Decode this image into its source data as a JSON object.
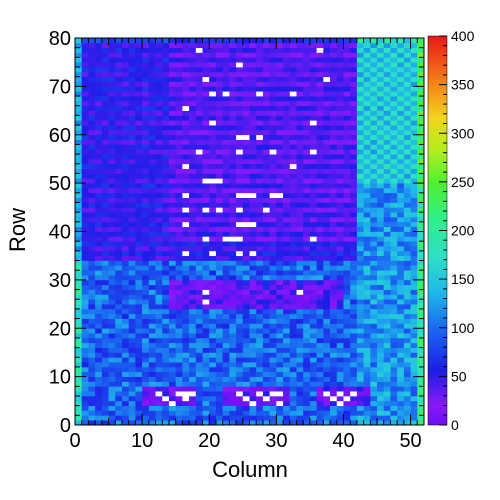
{
  "chart_data": {
    "type": "heatmap",
    "title": "",
    "xlabel": "Column",
    "ylabel": "Row",
    "xlim": [
      0,
      52
    ],
    "ylim": [
      0,
      80
    ],
    "x_ticks": [
      "0",
      "10",
      "20",
      "30",
      "40",
      "50"
    ],
    "y_ticks": [
      "0",
      "10",
      "20",
      "30",
      "40",
      "50",
      "60",
      "70",
      "80"
    ],
    "colorbar": {
      "range": [
        0,
        400
      ],
      "ticks": [
        "0",
        "50",
        "100",
        "150",
        "200",
        "250",
        "300",
        "350",
        "400"
      ]
    },
    "regions": [
      {
        "columns": [
          0,
          52
        ],
        "rows": [
          0,
          80
        ],
        "level": 100
      },
      {
        "columns": [
          0,
          42
        ],
        "rows": [
          34,
          80
        ],
        "level": 35
      },
      {
        "columns": [
          14,
          42
        ],
        "rows": [
          38,
          80
        ],
        "level": 22
      },
      {
        "columns": [
          42,
          52
        ],
        "rows": [
          50,
          80
        ],
        "level": 135
      },
      {
        "columns": [
          42,
          52
        ],
        "rows": [
          0,
          50
        ],
        "level": 120
      },
      {
        "columns": [
          0,
          42
        ],
        "rows": [
          0,
          34
        ],
        "level": 95
      },
      {
        "columns": [
          14,
          40
        ],
        "rows": [
          24,
          30
        ],
        "level": 30
      },
      {
        "columns": [
          10,
          18
        ],
        "rows": [
          4,
          8
        ],
        "level": 20
      },
      {
        "columns": [
          22,
          32
        ],
        "rows": [
          4,
          8
        ],
        "level": 20
      },
      {
        "columns": [
          36,
          44
        ],
        "rows": [
          4,
          8
        ],
        "level": 20
      }
    ],
    "zero_cells": [
      [
        18,
        77
      ],
      [
        36,
        77
      ],
      [
        24,
        74
      ],
      [
        19,
        71
      ],
      [
        37,
        71
      ],
      [
        20,
        68
      ],
      [
        22,
        68
      ],
      [
        27,
        68
      ],
      [
        32,
        68
      ],
      [
        16,
        65
      ],
      [
        20,
        62
      ],
      [
        35,
        62
      ],
      [
        24,
        59
      ],
      [
        25,
        59
      ],
      [
        27,
        59
      ],
      [
        18,
        56
      ],
      [
        24,
        56
      ],
      [
        29,
        56
      ],
      [
        35,
        56
      ],
      [
        16,
        53
      ],
      [
        32,
        53
      ],
      [
        19,
        50
      ],
      [
        20,
        50
      ],
      [
        21,
        50
      ],
      [
        16,
        47
      ],
      [
        24,
        47
      ],
      [
        25,
        47
      ],
      [
        26,
        47
      ],
      [
        29,
        47
      ],
      [
        30,
        47
      ],
      [
        16,
        44
      ],
      [
        19,
        44
      ],
      [
        21,
        44
      ],
      [
        24,
        44
      ],
      [
        28,
        44
      ],
      [
        24,
        41
      ],
      [
        25,
        41
      ],
      [
        26,
        41
      ],
      [
        16,
        41
      ],
      [
        19,
        38
      ],
      [
        22,
        38
      ],
      [
        23,
        38
      ],
      [
        24,
        38
      ],
      [
        35,
        38
      ],
      [
        16,
        35
      ],
      [
        20,
        35
      ],
      [
        24,
        35
      ],
      [
        26,
        35
      ],
      [
        19,
        27
      ],
      [
        33,
        27
      ],
      [
        19,
        25
      ],
      [
        12,
        6
      ],
      [
        15,
        6
      ],
      [
        16,
        6
      ],
      [
        17,
        6
      ],
      [
        13,
        5
      ],
      [
        16,
        5
      ],
      [
        14,
        4
      ],
      [
        24,
        6
      ],
      [
        27,
        6
      ],
      [
        29,
        6
      ],
      [
        30,
        6
      ],
      [
        25,
        5
      ],
      [
        28,
        5
      ],
      [
        26,
        4
      ],
      [
        30,
        4
      ],
      [
        37,
        6
      ],
      [
        39,
        6
      ],
      [
        41,
        6
      ],
      [
        38,
        5
      ],
      [
        40,
        5
      ],
      [
        39,
        4
      ]
    ]
  }
}
